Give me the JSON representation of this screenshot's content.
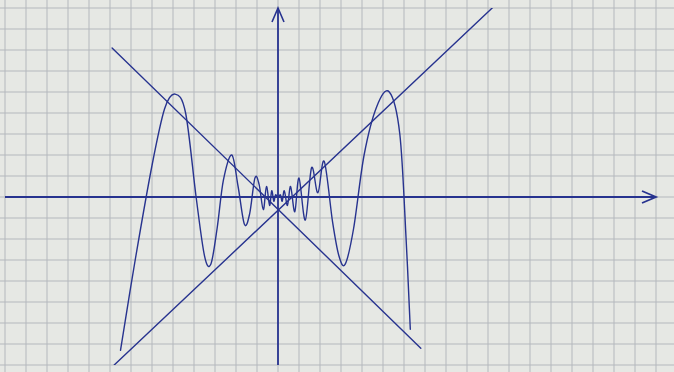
{
  "chart_data": {
    "type": "line",
    "xlim": [
      -13,
      18
    ],
    "ylim": [
      -8,
      9
    ],
    "xticks": [
      -13,
      -12,
      -11,
      -10,
      -9,
      -8,
      -7,
      -6,
      -5,
      -4,
      -3,
      -2,
      -1,
      0,
      1,
      2,
      3,
      4,
      5,
      6,
      7,
      8,
      9,
      10,
      11,
      12,
      13,
      14,
      15,
      16,
      17,
      18
    ],
    "yticks": [
      -8,
      -7,
      -6,
      -5,
      -4,
      -3,
      -2,
      -1,
      0,
      1,
      2,
      3,
      4,
      5,
      6,
      7,
      8,
      9
    ],
    "grid": true,
    "tick_labels": false,
    "color": "#27338f",
    "series": [
      {
        "x": [
          -7.5,
          -6.8,
          -6.0,
          -5.4,
          -4.9,
          -4.4,
          -3.9,
          -3.5,
          -3.2,
          -2.9,
          -2.6,
          -2.2,
          -1.9,
          -1.6,
          -1.35,
          -1.1,
          -0.9,
          -0.7,
          -0.55,
          -0.4,
          -0.3,
          -0.2,
          -0.12,
          0,
          0.12,
          0.2,
          0.3,
          0.45,
          0.6,
          0.8,
          1.0,
          1.3,
          1.6,
          1.9,
          2.2,
          2.6,
          2.9,
          3.2,
          3.6,
          4.1,
          4.7,
          5.3,
          5.8,
          6.1,
          6.3
        ],
        "values": [
          -7.3,
          -3.0,
          1.5,
          4.2,
          4.9,
          4.0,
          0,
          -2.8,
          -3.2,
          -1.5,
          0.8,
          2.0,
          0.5,
          -1.3,
          -0.8,
          0.9,
          0.6,
          -0.6,
          0.5,
          -0.4,
          0.3,
          -0.2,
          0.1,
          0,
          0.1,
          -0.2,
          0.3,
          -0.4,
          0.5,
          -0.7,
          0.9,
          -1.1,
          1.4,
          0.2,
          1.7,
          -1.2,
          -2.8,
          -3.2,
          -1.5,
          2.0,
          4.3,
          5.0,
          3.0,
          -2.0,
          -6.3
        ],
        "line_style": "solid"
      },
      {
        "x": [
          -7.8,
          10.2
        ],
        "values": [
          -8,
          9
        ],
        "line_style": "solid"
      },
      {
        "x": [
          -7.9,
          6.8
        ],
        "values": [
          7.1,
          -7.2
        ],
        "line_style": "solid"
      }
    ]
  }
}
